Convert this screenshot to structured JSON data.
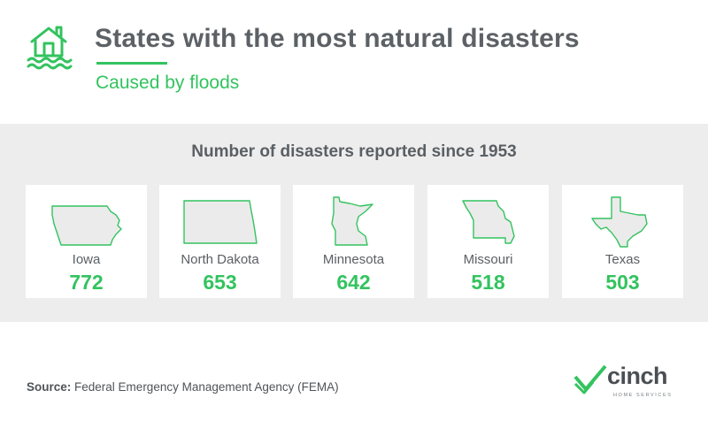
{
  "header": {
    "title": "States with the most natural disasters",
    "subtitle": "Caused by floods",
    "icon": "flooded-house-icon"
  },
  "panel": {
    "heading": "Number of disasters reported since 1953"
  },
  "chart_data": {
    "type": "table",
    "title": "States with the most natural disasters",
    "subtitle": "Caused by floods",
    "heading": "Number of disasters reported since 1953",
    "categories": [
      "Iowa",
      "North Dakota",
      "Minnesota",
      "Missouri",
      "Texas"
    ],
    "values": [
      772,
      653,
      642,
      518,
      503
    ]
  },
  "footer": {
    "source_label": "Source:",
    "source_text": "Federal Emergency Management Agency (FEMA)"
  },
  "logo": {
    "word": "cinch",
    "tagline": "HOME SERVICES"
  },
  "colors": {
    "accent": "#33c35f",
    "text": "#5c6166",
    "panel": "#ededed",
    "map_fill": "#ebebeb"
  }
}
